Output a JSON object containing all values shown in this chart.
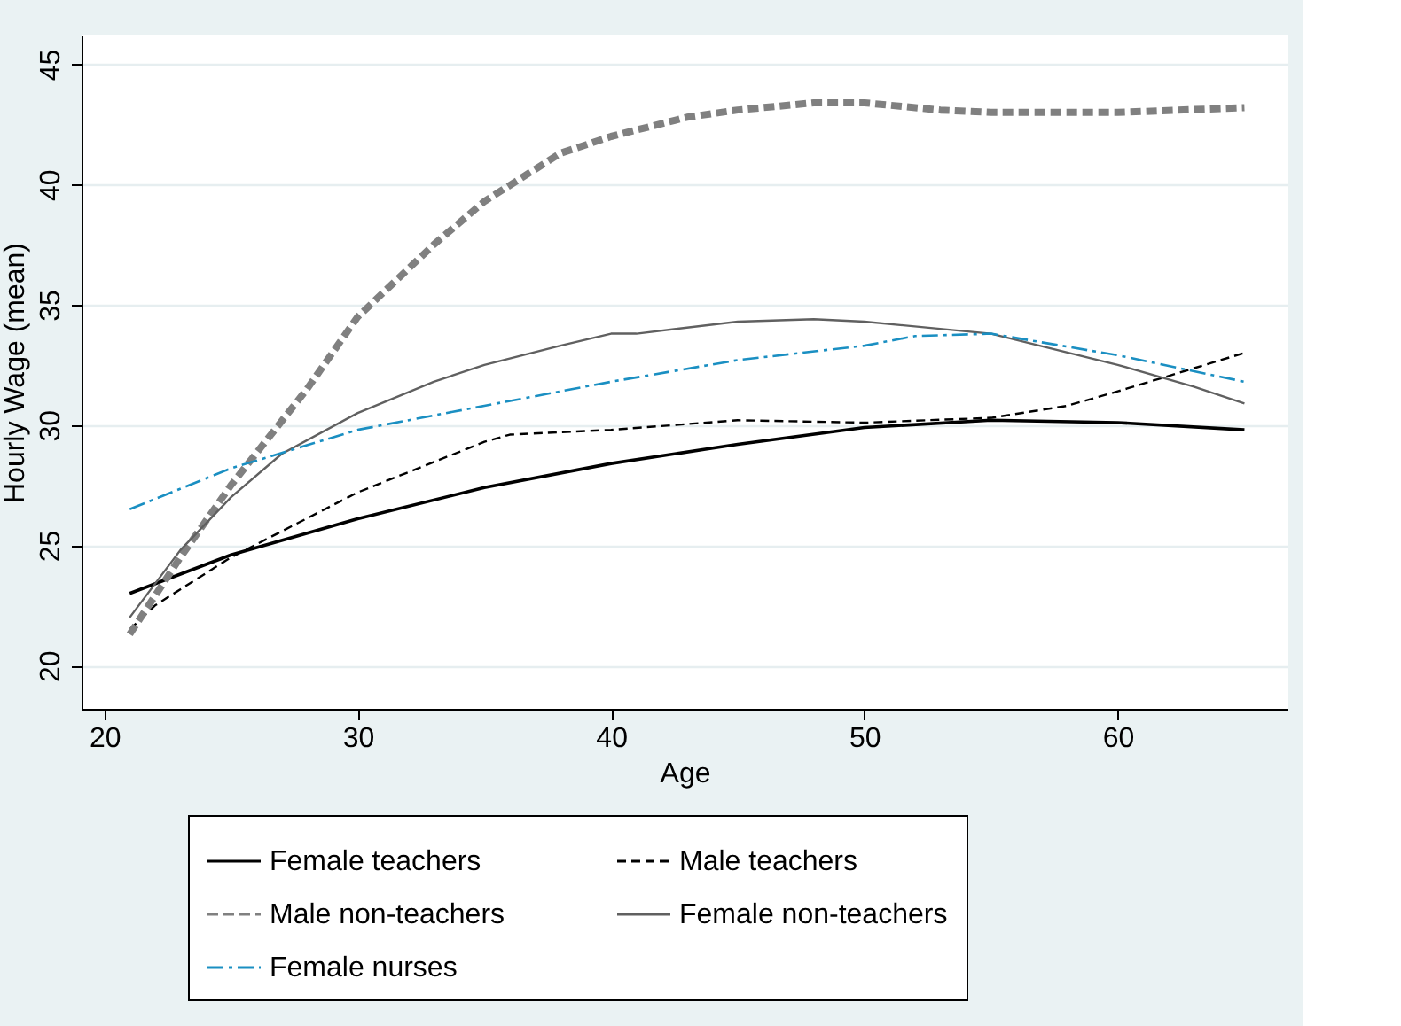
{
  "chart_data": {
    "type": "line",
    "xlabel": "Age",
    "ylabel": "Hourly Wage (mean)",
    "xlim": [
      19.1,
      66.7
    ],
    "ylim": [
      18.2,
      46.2
    ],
    "xticks": [
      20,
      30,
      40,
      50,
      60
    ],
    "yticks": [
      20,
      25,
      30,
      35,
      40,
      45
    ],
    "grid": "y",
    "legend": "bottom",
    "series": [
      {
        "name": "Female teachers",
        "color": "#000000",
        "line_style": "solid",
        "x": [
          21,
          25,
          30,
          35,
          40,
          45,
          50,
          55,
          60,
          65
        ],
        "values": [
          23.0,
          24.6,
          26.1,
          27.4,
          28.4,
          29.2,
          29.9,
          30.2,
          30.1,
          29.8
        ]
      },
      {
        "name": "Male teachers",
        "color": "#000000",
        "line_style": "dashed",
        "x": [
          21,
          22,
          25,
          30,
          35,
          36,
          40,
          45,
          50,
          55,
          58,
          60,
          65
        ],
        "values": [
          21.5,
          22.5,
          24.5,
          27.2,
          29.3,
          29.6,
          29.8,
          30.2,
          30.1,
          30.3,
          30.8,
          31.4,
          33.0
        ]
      },
      {
        "name": "Male non-teachers",
        "color": "#808080",
        "line_style": "dashed",
        "x": [
          21,
          23,
          25,
          28,
          30,
          33,
          35,
          38,
          40,
          43,
          45,
          48,
          50,
          53,
          55,
          60,
          65
        ],
        "values": [
          21.3,
          24.5,
          27.5,
          31.5,
          34.5,
          37.5,
          39.3,
          41.3,
          42.0,
          42.8,
          43.1,
          43.4,
          43.4,
          43.1,
          43.0,
          43.0,
          43.2
        ]
      },
      {
        "name": "Female non-teachers",
        "color": "#606060",
        "line_style": "solid",
        "x": [
          21,
          23,
          25,
          27,
          30,
          33,
          35,
          38,
          40,
          41,
          45,
          48,
          50,
          55,
          60,
          63,
          65
        ],
        "values": [
          22.0,
          24.8,
          27.0,
          28.8,
          30.5,
          31.8,
          32.5,
          33.3,
          33.8,
          33.8,
          34.3,
          34.4,
          34.3,
          33.8,
          32.5,
          31.6,
          30.9
        ]
      },
      {
        "name": "Female nurses",
        "color": "#1a8fc2",
        "line_style": "dashdot",
        "x": [
          21,
          25,
          30,
          35,
          40,
          45,
          50,
          52,
          55,
          60,
          65
        ],
        "values": [
          26.5,
          28.2,
          29.8,
          30.8,
          31.8,
          32.7,
          33.3,
          33.7,
          33.8,
          32.9,
          31.8
        ]
      }
    ]
  }
}
